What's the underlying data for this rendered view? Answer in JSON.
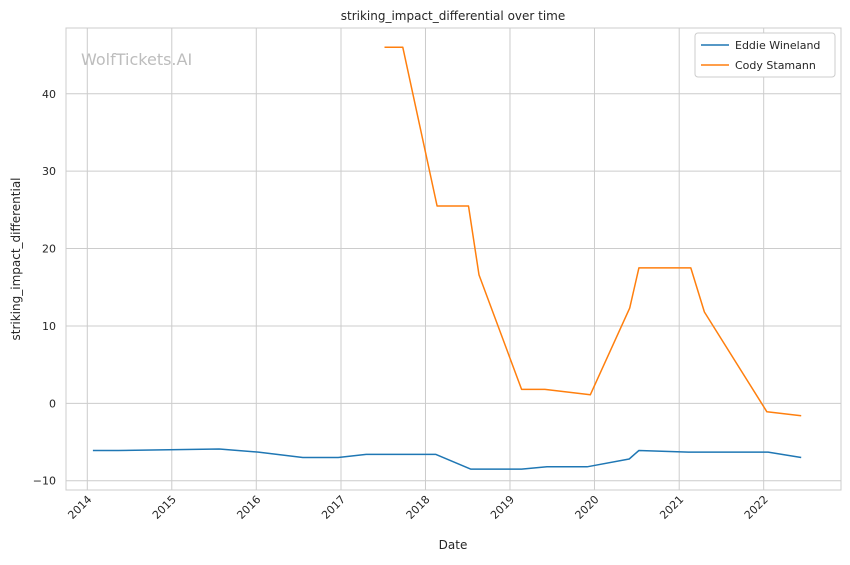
{
  "chart_data": {
    "type": "line",
    "title": "striking_impact_differential over time",
    "xlabel": "Date",
    "ylabel": "striking_impact_differential",
    "watermark": "WolfTickets.AI",
    "x_ticks": [
      "2014",
      "2015",
      "2016",
      "2017",
      "2018",
      "2019",
      "2020",
      "2021",
      "2022"
    ],
    "y_ticks": [
      -10,
      0,
      10,
      20,
      30,
      40
    ],
    "xlim": [
      "2013-10-01",
      "2022-12-01"
    ],
    "ylim": [
      -11.2,
      48.5
    ],
    "grid": true,
    "legend_position": "top-right",
    "series": [
      {
        "name": "Eddie Wineland",
        "color": "#1f77b4",
        "points": [
          [
            "2014-01-25",
            -6.1
          ],
          [
            "2014-05-15",
            -6.1
          ],
          [
            "2015-07-25",
            -5.9
          ],
          [
            "2016-01-10",
            -6.3
          ],
          [
            "2016-07-20",
            -7.0
          ],
          [
            "2016-12-20",
            -7.0
          ],
          [
            "2017-04-20",
            -6.6
          ],
          [
            "2018-02-15",
            -6.6
          ],
          [
            "2018-07-15",
            -8.5
          ],
          [
            "2019-02-20",
            -8.5
          ],
          [
            "2019-06-10",
            -8.2
          ],
          [
            "2019-11-30",
            -8.2
          ],
          [
            "2020-05-30",
            -7.2
          ],
          [
            "2020-07-11",
            -6.1
          ],
          [
            "2021-02-10",
            -6.3
          ],
          [
            "2022-01-20",
            -6.3
          ],
          [
            "2022-06-12",
            -7.0
          ]
        ]
      },
      {
        "name": "Cody Stamann",
        "color": "#ff7f0e",
        "points": [
          [
            "2017-07-08",
            46
          ],
          [
            "2017-09-25",
            46
          ],
          [
            "2018-02-20",
            25.5
          ],
          [
            "2018-07-06",
            25.5
          ],
          [
            "2018-08-20",
            16.6
          ],
          [
            "2019-02-20",
            1.8
          ],
          [
            "2019-06-01",
            1.8
          ],
          [
            "2019-12-14",
            1.1
          ],
          [
            "2020-06-01",
            12.3
          ],
          [
            "2020-07-11",
            17.5
          ],
          [
            "2021-02-20",
            17.5
          ],
          [
            "2021-04-20",
            11.8
          ],
          [
            "2022-01-15",
            -1.1
          ],
          [
            "2022-06-12",
            -1.6
          ]
        ]
      }
    ]
  }
}
